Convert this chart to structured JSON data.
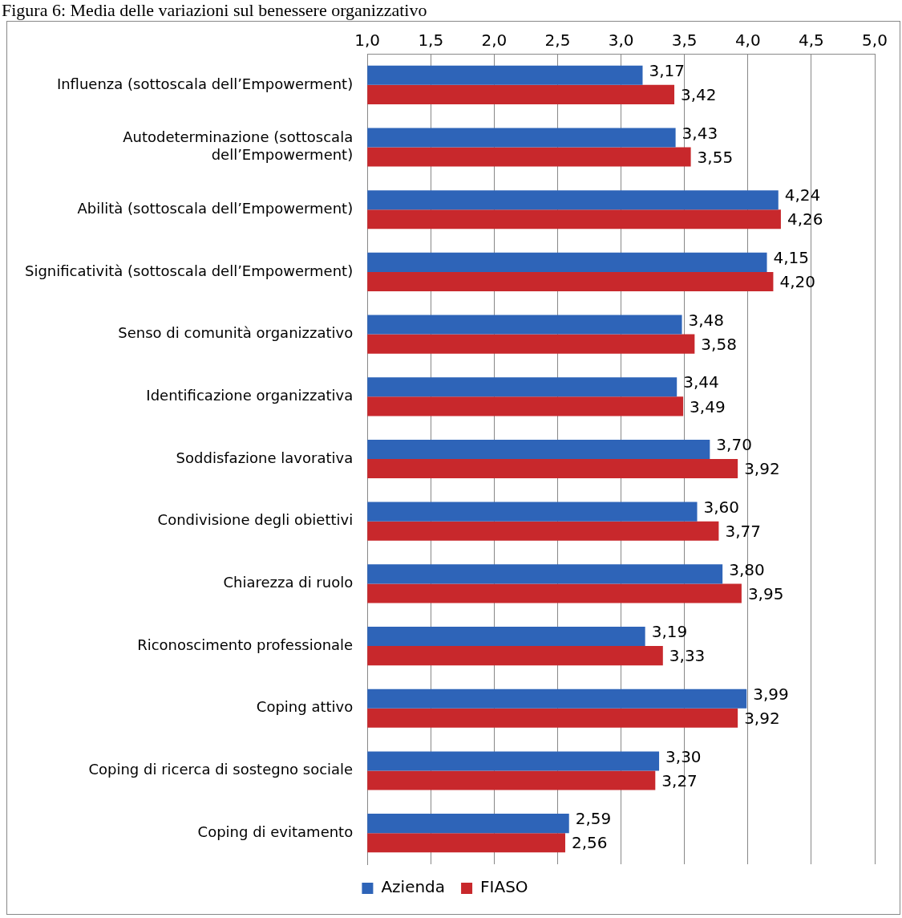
{
  "chart_data": {
    "type": "bar",
    "orientation": "horizontal",
    "title": "Figura 6: Media delle variazioni sul benessere organizzativo",
    "categories": [
      "Influenza (sottoscala dell’Empowerment)",
      "Autodeterminazione (sottoscala dell’Empowerment)",
      "Abilità (sottoscala dell’Empowerment)",
      "Significatività (sottoscala dell’Empowerment)",
      "Senso di comunità organizzativo",
      "Identificazione organizzativa",
      "Soddisfazione lavorativa",
      "Condivisione degli obiettivi",
      "Chiarezza di ruolo",
      "Riconoscimento professionale",
      "Coping attivo",
      "Coping di ricerca di sostegno sociale",
      "Coping di evitamento"
    ],
    "series": [
      {
        "name": "Azienda",
        "color": "#2e64b8",
        "values": [
          3.17,
          3.43,
          4.24,
          4.15,
          3.48,
          3.44,
          3.7,
          3.6,
          3.8,
          3.19,
          3.99,
          3.3,
          2.59
        ],
        "value_labels": [
          "3,17",
          "3,43",
          "4,24",
          "4,15",
          "3,48",
          "3,44",
          "3,70",
          "3,60",
          "3,80",
          "3,19",
          "3,99",
          "3,30",
          "2,59"
        ]
      },
      {
        "name": "FIASO",
        "color": "#c8282c",
        "values": [
          3.42,
          3.55,
          4.26,
          4.2,
          3.58,
          3.49,
          3.92,
          3.77,
          3.95,
          3.33,
          3.92,
          3.27,
          2.56
        ],
        "value_labels": [
          "3,42",
          "3,55",
          "4,26",
          "4,20",
          "3,58",
          "3,49",
          "3,92",
          "3,77",
          "3,95",
          "3,33",
          "3,92",
          "3,27",
          "2,56"
        ]
      }
    ],
    "xlim": [
      1,
      5
    ],
    "xticks": [
      {
        "value": 1,
        "label": "1,0"
      },
      {
        "value": 1.5,
        "label": "1,5"
      },
      {
        "value": 2,
        "label": "2,0"
      },
      {
        "value": 2.5,
        "label": "2,5"
      },
      {
        "value": 3,
        "label": "3,0"
      },
      {
        "value": 3.5,
        "label": "3,5"
      },
      {
        "value": 4,
        "label": "4,0"
      },
      {
        "value": 4.5,
        "label": "4,5"
      },
      {
        "value": 5,
        "label": "5,0"
      }
    ],
    "grid": "x",
    "legend": "bottom"
  }
}
